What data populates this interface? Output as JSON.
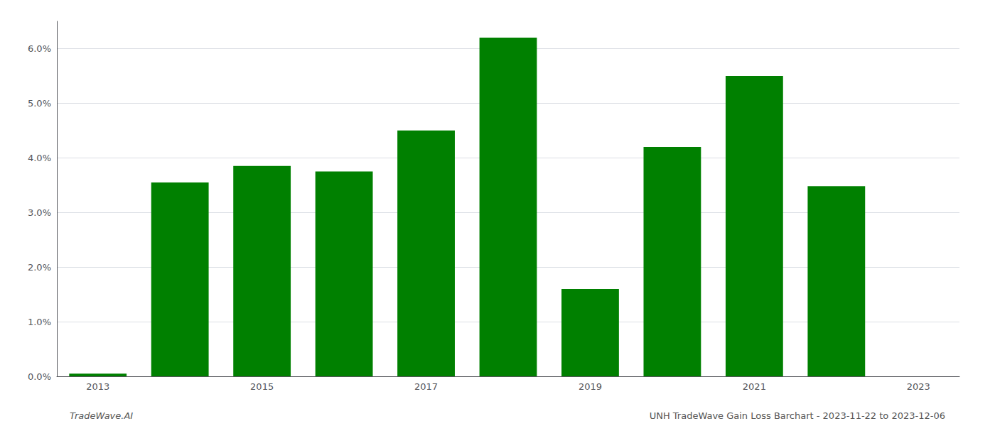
{
  "chart_data": {
    "type": "bar",
    "x": [
      2013,
      2014,
      2015,
      2016,
      2017,
      2018,
      2019,
      2020,
      2021,
      2022,
      2023
    ],
    "values": [
      0.0005,
      0.0355,
      0.0385,
      0.0375,
      0.045,
      0.062,
      0.016,
      0.042,
      0.055,
      0.0348,
      0.0
    ],
    "color": "#008000",
    "xlim": [
      2012.5,
      2023.5
    ],
    "xticks": [
      2013,
      2015,
      2017,
      2019,
      2021,
      2023
    ],
    "ylim": [
      0.0,
      0.065
    ],
    "yticks": [
      {
        "value": 0.0,
        "label": "0.0%"
      },
      {
        "value": 0.01,
        "label": "1.0%"
      },
      {
        "value": 0.02,
        "label": "2.0%"
      },
      {
        "value": 0.03,
        "label": "3.0%"
      },
      {
        "value": 0.04,
        "label": "4.0%"
      },
      {
        "value": 0.05,
        "label": "5.0%"
      },
      {
        "value": 0.06,
        "label": "6.0%"
      }
    ],
    "grid": true,
    "annotations": [
      "TradeWave.AI",
      "UNH TradeWave Gain Loss Barchart - 2023-11-22 to 2023-12-06"
    ]
  }
}
